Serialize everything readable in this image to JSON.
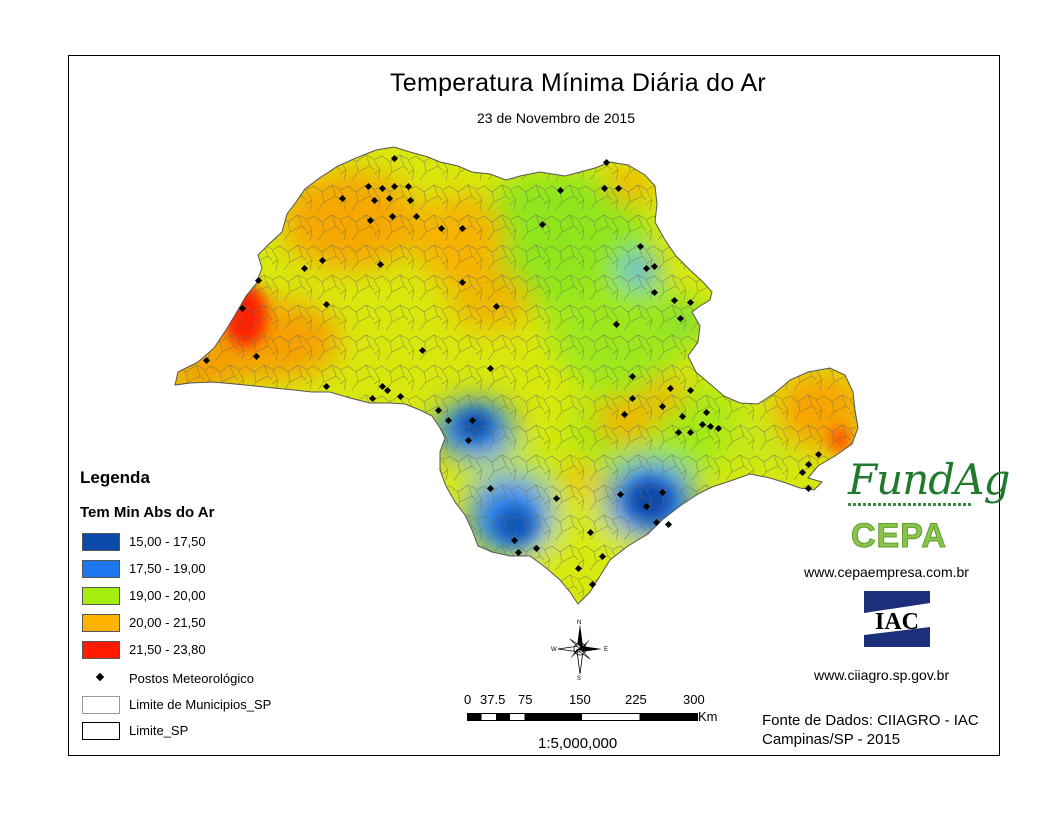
{
  "title": "Temperatura Mínima Diária do Ar",
  "subtitle": "23 de Novembro de 2015",
  "legend": {
    "heading": "Legenda",
    "variable": "Tem Min Abs do Ar",
    "classes": [
      {
        "label": "15,00 - 17,50",
        "color": "#0b4aa8"
      },
      {
        "label": "17,50 - 19,00",
        "color": "#1d78f0"
      },
      {
        "label": "19,00 - 20,00",
        "color": "#a5ef10"
      },
      {
        "label": "20,00 - 21,50",
        "color": "#ffb300"
      },
      {
        "label": "21,50 - 23,80",
        "color": "#ff1a00"
      }
    ],
    "stations_label": "Postos Meteorológico",
    "municipalities_label": "Limite de Municipios_SP",
    "state_label": "Limite_SP"
  },
  "compass": {
    "n": "N",
    "s": "S",
    "e": "E",
    "w": "W"
  },
  "scale": {
    "ticks": [
      "0",
      "37.5",
      "75",
      "150",
      "225",
      "300"
    ],
    "unit": "Km",
    "ratio": "1:5,000,000"
  },
  "logos": {
    "fundag": "FundAg",
    "cepa": "CEPA",
    "iac": "IAC"
  },
  "urls": {
    "cepa": "www.cepaempresa.com.br",
    "ciiagro": "www.ciiagro.sp.gov.br"
  },
  "source": {
    "line1": "Fonte de Dados: CIIAGRO - IAC",
    "line2": "Campinas/SP - 2015"
  }
}
